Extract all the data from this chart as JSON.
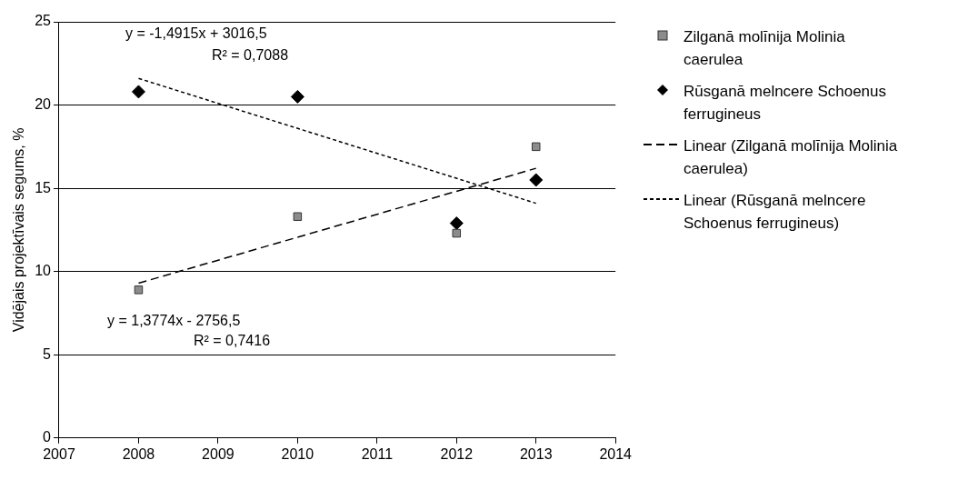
{
  "chart_data": {
    "type": "scatter",
    "ylabel": "Vidējais projektīvais segums, %",
    "xlim": [
      2007,
      2014
    ],
    "xticks": [
      2007,
      2008,
      2009,
      2010,
      2011,
      2012,
      2013,
      2014
    ],
    "x": [
      2008,
      2010,
      2012,
      2013
    ],
    "ylim": [
      0,
      25
    ],
    "yticks": [
      0,
      5,
      10,
      15,
      20,
      25
    ],
    "grid": "y",
    "legend": "right",
    "series": [
      {
        "name": "Zilganā molīnija Molinia caerulea",
        "type": "scatter",
        "marker": "square",
        "color": "#8c8c8c",
        "values": [
          8.9,
          13.3,
          12.3,
          17.5
        ]
      },
      {
        "name": "Rūsganā melncere Schoenus ferrugineus",
        "type": "scatter",
        "marker": "diamond",
        "color": "#000000",
        "values": [
          20.8,
          20.5,
          12.9,
          15.5
        ]
      },
      {
        "name": "Linear (Zilganā molīnija Molinia caerulea)",
        "type": "line",
        "marker": "none",
        "line_style": "dashed",
        "color": "#000000",
        "values": [
          9.3,
          null,
          null,
          16.2
        ]
      },
      {
        "name": "Linear (Rūsganā melncere Schoenus ferrugineus)",
        "type": "line",
        "marker": "none",
        "line_style": "dotted",
        "color": "#000000",
        "values": [
          21.6,
          null,
          null,
          14.1
        ]
      }
    ],
    "annotations": [
      "y = -1,4915x + 3016,5",
      "R² = 0,7088",
      "y = 1,3774x - 2756,5",
      "R² = 0,7416"
    ]
  }
}
